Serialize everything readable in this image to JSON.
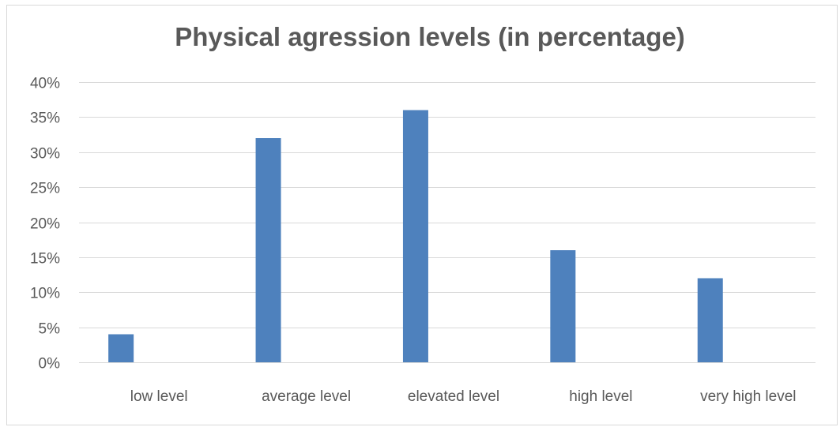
{
  "chart_data": {
    "type": "bar",
    "title": "Physical agression levels (in percentage)",
    "categories": [
      "low level",
      "average level",
      "elevated level",
      "high level",
      "very high level"
    ],
    "values": [
      4,
      32,
      36,
      16,
      12
    ],
    "ylim": [
      0,
      40
    ],
    "yticks": [
      0,
      5,
      10,
      15,
      20,
      25,
      30,
      35,
      40
    ],
    "ytick_labels": [
      "0%",
      "5%",
      "10%",
      "15%",
      "20%",
      "25%",
      "30%",
      "35%",
      "40%"
    ],
    "xlabel": "",
    "ylabel": "",
    "grid": true,
    "legend": "none",
    "bar_color": "#4e81bd",
    "grid_color": "#d9d9d9"
  }
}
